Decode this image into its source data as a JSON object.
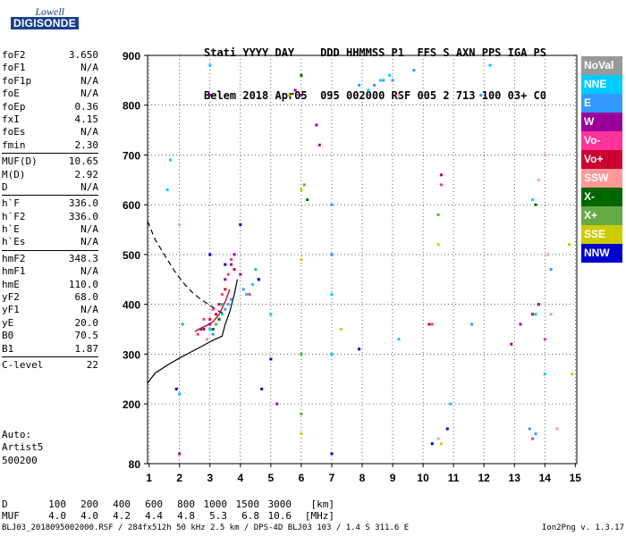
{
  "logo": {
    "line1": "Lowell",
    "line2": "DIGISONDE"
  },
  "header": {
    "labels": [
      "Stati",
      "YYYY",
      "DAY",
      "DDD",
      "HHMMSS",
      "P1",
      "FFS",
      "S",
      "AXN",
      "PPS",
      "IGA",
      "PS"
    ],
    "values": [
      "Belem",
      "2018",
      "Apr05",
      "095",
      "002000",
      "RSF",
      "005",
      "2",
      "713",
      "100",
      "03+",
      "C0"
    ]
  },
  "params": [
    [
      {
        "name": "foF2",
        "value": "3.650"
      },
      {
        "name": "foF1",
        "value": "N/A"
      },
      {
        "name": "foF1p",
        "value": "N/A"
      },
      {
        "name": "foE",
        "value": "N/A"
      },
      {
        "name": "foEp",
        "value": "0.36"
      },
      {
        "name": "fxI",
        "value": "4.15"
      },
      {
        "name": "foEs",
        "value": "N/A"
      },
      {
        "name": "fmin",
        "value": "2.30"
      }
    ],
    [
      {
        "name": "MUF(D)",
        "value": "10.65"
      },
      {
        "name": "M(D)",
        "value": "2.92"
      },
      {
        "name": "D",
        "value": "N/A"
      }
    ],
    [
      {
        "name": "h`F",
        "value": "336.0"
      },
      {
        "name": "h`F2",
        "value": "336.0"
      },
      {
        "name": "h`E",
        "value": "N/A"
      },
      {
        "name": "h`Es",
        "value": "N/A"
      }
    ],
    [
      {
        "name": "hmF2",
        "value": "348.3"
      },
      {
        "name": "hmF1",
        "value": "N/A"
      },
      {
        "name": "hmE",
        "value": "110.0"
      },
      {
        "name": "yF2",
        "value": "68.0"
      },
      {
        "name": "yF1",
        "value": "N/A"
      },
      {
        "name": "yE",
        "value": "20.0"
      },
      {
        "name": "B0",
        "value": "70.5"
      },
      {
        "name": "B1",
        "value": "1.87"
      }
    ],
    [
      {
        "name": "C-level",
        "value": "22"
      }
    ]
  ],
  "auto": [
    "Auto:",
    "Artist5",
    "500200"
  ],
  "legend": [
    {
      "label": "NoVal",
      "color": "#999999"
    },
    {
      "label": "NNE",
      "color": "#00ccff"
    },
    {
      "label": "E",
      "color": "#3399ff"
    },
    {
      "label": "W",
      "color": "#990099"
    },
    {
      "label": "Vo-",
      "color": "#ff3399"
    },
    {
      "label": "Vo+",
      "color": "#cc0033"
    },
    {
      "label": "SSW",
      "color": "#ff9999"
    },
    {
      "label": "X-",
      "color": "#006600"
    },
    {
      "label": "X+",
      "color": "#66aa44"
    },
    {
      "label": "SSE",
      "color": "#cccc00"
    },
    {
      "label": "NNW",
      "color": "#0000cc"
    }
  ],
  "bottom_table": {
    "row1_label": "D",
    "row1_values": [
      "100",
      "200",
      "400",
      "600",
      "800",
      "1000",
      "1500",
      "3000",
      "[km]"
    ],
    "row2_label": "MUF",
    "row2_values": [
      "4.0",
      "4.0",
      "4.2",
      "4.4",
      "4.8",
      "5.3",
      "6.8",
      "10.6",
      "[MHz]"
    ]
  },
  "footer": {
    "left": "BLJ03_2018095002000.RSF / 284fx512h 50 kHz 2.5 km / DPS-4D BLJ03 103 / 1.4 S 311.6 E",
    "right": "Ion2Png v. 1.3.17"
  },
  "chart_data": {
    "type": "scatter",
    "title": "",
    "xlabel": "",
    "ylabel": "",
    "xlim": [
      0.95,
      15.05
    ],
    "ylim": [
      80,
      900
    ],
    "x_ticks": [
      1,
      2,
      3,
      4,
      5,
      6,
      7,
      8,
      9,
      10,
      11,
      12,
      13,
      14,
      15
    ],
    "y_ticks": [
      80,
      200,
      300,
      400,
      500,
      600,
      700,
      800,
      900
    ],
    "grid": true,
    "legend_position": "right",
    "series": [
      {
        "name": "NNE",
        "color": "#00ccff",
        "points": [
          [
            1.6,
            630
          ],
          [
            1.7,
            690
          ],
          [
            2.9,
            330
          ],
          [
            3.0,
            350
          ],
          [
            3.2,
            360
          ],
          [
            3.4,
            380
          ],
          [
            3.6,
            400
          ],
          [
            4.2,
            420
          ],
          [
            4.4,
            440
          ],
          [
            4.6,
            450
          ],
          [
            5.0,
            380
          ],
          [
            6.0,
            300
          ],
          [
            7.0,
            420
          ],
          [
            7.0,
            300
          ],
          [
            8.2,
            830
          ],
          [
            8.6,
            850
          ],
          [
            8.9,
            860
          ],
          [
            9.2,
            330
          ],
          [
            10.9,
            200
          ],
          [
            12.2,
            880
          ],
          [
            13.6,
            610
          ],
          [
            13.7,
            380
          ],
          [
            14.0,
            260
          ],
          [
            3.0,
            880
          ],
          [
            2.0,
            220
          ]
        ]
      },
      {
        "name": "E",
        "color": "#3399ff",
        "points": [
          [
            3.1,
            340
          ],
          [
            3.3,
            370
          ],
          [
            3.5,
            390
          ],
          [
            3.7,
            410
          ],
          [
            4.1,
            430
          ],
          [
            4.5,
            470
          ],
          [
            7.0,
            500
          ],
          [
            7.0,
            600
          ],
          [
            7.9,
            840
          ],
          [
            8.4,
            840
          ],
          [
            8.7,
            850
          ],
          [
            9.0,
            850
          ],
          [
            11.6,
            360
          ],
          [
            11.9,
            820
          ],
          [
            13.5,
            150
          ],
          [
            13.7,
            140
          ],
          [
            14.2,
            470
          ],
          [
            2.1,
            360
          ],
          [
            9.7,
            870
          ]
        ]
      },
      {
        "name": "W",
        "color": "#990099",
        "points": [
          [
            2.8,
            350
          ],
          [
            3.0,
            360
          ],
          [
            3.3,
            400
          ],
          [
            3.5,
            450
          ],
          [
            3.7,
            480
          ],
          [
            3.8,
            500
          ],
          [
            4.0,
            460
          ],
          [
            5.2,
            200
          ],
          [
            5.8,
            830
          ],
          [
            6.0,
            820
          ],
          [
            6.5,
            760
          ],
          [
            6.6,
            720
          ],
          [
            3.0,
            820
          ],
          [
            2.0,
            100
          ],
          [
            12.9,
            320
          ],
          [
            13.2,
            360
          ]
        ]
      },
      {
        "name": "Vo-",
        "color": "#ff3399",
        "points": [
          [
            2.6,
            340
          ],
          [
            2.8,
            370
          ],
          [
            3.1,
            390
          ],
          [
            3.4,
            420
          ],
          [
            3.6,
            460
          ],
          [
            3.7,
            490
          ],
          [
            10.3,
            360
          ],
          [
            10.6,
            640
          ],
          [
            13.8,
            400
          ],
          [
            13.6,
            130
          ],
          [
            14.0,
            330
          ],
          [
            4.3,
            420
          ]
        ]
      },
      {
        "name": "Vo+",
        "color": "#cc0033",
        "points": [
          [
            2.7,
            350
          ],
          [
            3.0,
            370
          ],
          [
            3.2,
            380
          ],
          [
            3.5,
            430
          ],
          [
            3.8,
            470
          ],
          [
            10.2,
            360
          ],
          [
            10.6,
            660
          ],
          [
            13.6,
            380
          ],
          [
            13.8,
            400
          ]
        ]
      },
      {
        "name": "SSW",
        "color": "#ff9999",
        "points": [
          [
            2.0,
            560
          ],
          [
            2.9,
            330
          ],
          [
            3.1,
            350
          ],
          [
            9.2,
            820
          ],
          [
            10.5,
            130
          ],
          [
            13.8,
            650
          ],
          [
            14.0,
            700
          ],
          [
            14.1,
            500
          ],
          [
            14.2,
            380
          ],
          [
            14.4,
            150
          ]
        ]
      },
      {
        "name": "X-",
        "color": "#006600",
        "points": [
          [
            3.1,
            350
          ],
          [
            3.3,
            370
          ],
          [
            6.0,
            860
          ],
          [
            6.2,
            610
          ],
          [
            13.7,
            600
          ]
        ]
      },
      {
        "name": "X+",
        "color": "#66aa44",
        "points": [
          [
            3.2,
            360
          ],
          [
            3.4,
            400
          ],
          [
            6.0,
            300
          ],
          [
            6.1,
            640
          ],
          [
            6.0,
            180
          ],
          [
            10.5,
            580
          ]
        ]
      },
      {
        "name": "SSE",
        "color": "#cccc00",
        "points": [
          [
            5.6,
            820
          ],
          [
            6.0,
            630
          ],
          [
            6.0,
            490
          ],
          [
            6.0,
            140
          ],
          [
            7.3,
            350
          ],
          [
            10.5,
            520
          ],
          [
            10.6,
            120
          ],
          [
            14.8,
            520
          ],
          [
            14.9,
            260
          ]
        ]
      },
      {
        "name": "NNW",
        "color": "#0000cc",
        "points": [
          [
            1.9,
            230
          ],
          [
            3.0,
            500
          ],
          [
            3.5,
            480
          ],
          [
            4.0,
            560
          ],
          [
            4.6,
            450
          ],
          [
            4.7,
            230
          ],
          [
            5.0,
            290
          ],
          [
            7.0,
            100
          ],
          [
            7.9,
            310
          ],
          [
            10.3,
            120
          ],
          [
            10.8,
            150
          ]
        ]
      }
    ],
    "curves": [
      {
        "name": "profile-solid",
        "style": "solid",
        "points": [
          [
            0.95,
            242
          ],
          [
            1.2,
            262
          ],
          [
            1.6,
            278
          ],
          [
            2.0,
            292
          ],
          [
            2.4,
            305
          ],
          [
            2.8,
            318
          ],
          [
            3.1,
            328
          ],
          [
            3.4,
            336
          ],
          [
            3.5,
            360
          ],
          [
            3.65,
            385
          ],
          [
            3.8,
            420
          ],
          [
            3.9,
            450
          ]
        ]
      },
      {
        "name": "profile-dashed",
        "style": "dashed",
        "points": [
          [
            0.95,
            567
          ],
          [
            1.2,
            530
          ],
          [
            1.5,
            500
          ],
          [
            1.8,
            470
          ],
          [
            2.1,
            445
          ],
          [
            2.4,
            425
          ],
          [
            2.7,
            410
          ],
          [
            3.0,
            398
          ],
          [
            3.3,
            386
          ],
          [
            3.5,
            380
          ]
        ]
      },
      {
        "name": "trace-solid",
        "style": "solid-red",
        "points": [
          [
            2.5,
            345
          ],
          [
            2.7,
            352
          ],
          [
            2.9,
            358
          ],
          [
            3.1,
            365
          ],
          [
            3.3,
            380
          ],
          [
            3.5,
            405
          ],
          [
            3.65,
            430
          ]
        ]
      }
    ]
  }
}
